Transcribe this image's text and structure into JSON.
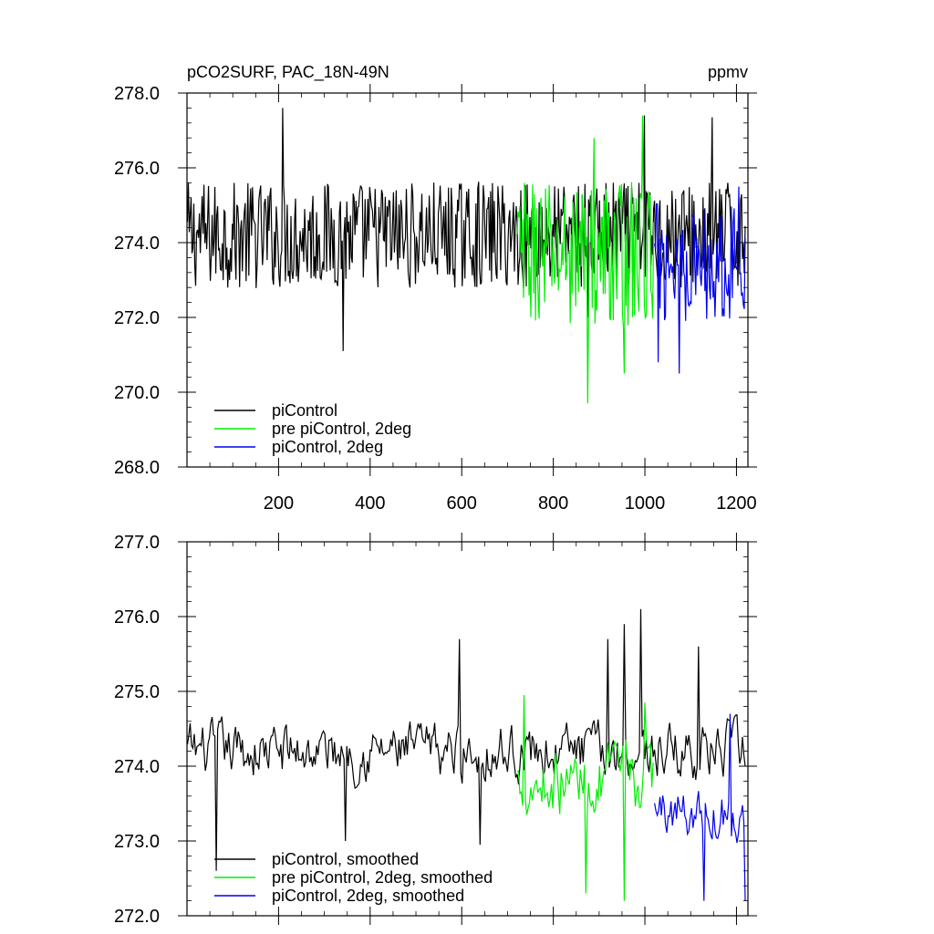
{
  "colors": {
    "piControl": "#000000",
    "pre_piControl_2deg": "#00ee00",
    "piControl_2deg": "#0000ee"
  },
  "chart_data": [
    {
      "type": "line",
      "title_left": "pCO2SURF, PAC_18N-49N",
      "title_right": "ppmv",
      "xlim": [
        0,
        1225
      ],
      "ylim": [
        268.0,
        278.0
      ],
      "x_ticks": [
        200,
        400,
        600,
        800,
        1000,
        1200
      ],
      "x_tick_labels": [
        "200",
        "400",
        "600",
        "800",
        "1000",
        "1200"
      ],
      "y_ticks": [
        268,
        270,
        272,
        274,
        276,
        278
      ],
      "y_tick_labels": [
        "268.0",
        "270.0",
        "272.0",
        "274.0",
        "276.0",
        "278.0"
      ],
      "legend_position": "bottom-left",
      "series": [
        {
          "name": "piControl",
          "color": "#000000",
          "x_range": [
            1,
            1220
          ],
          "mean": 274.2,
          "amplitude": 0.9,
          "spikes": [
            [
              210,
              277.6
            ],
            [
              342,
              271.1
            ],
            [
              1000,
              277.4
            ],
            [
              1148,
              277.35
            ],
            [
              875,
              272.0
            ]
          ]
        },
        {
          "name": "pre piControl, 2deg",
          "color": "#00ee00",
          "x_range": [
            721,
            1020
          ],
          "mean": 273.7,
          "amplitude": 1.2,
          "spikes": [
            [
              875,
              269.7
            ],
            [
              995,
              277.4
            ],
            [
              955,
              270.5
            ],
            [
              890,
              276.8
            ]
          ]
        },
        {
          "name": "piControl, 2deg",
          "color": "#0000ee",
          "x_range": [
            1021,
            1220
          ],
          "mean": 273.5,
          "amplitude": 1.0,
          "spikes": [
            [
              1075,
              270.5
            ],
            [
              1030,
              270.8
            ],
            [
              1205,
              275.5
            ]
          ]
        }
      ]
    },
    {
      "type": "line",
      "title_left": "",
      "title_right": "",
      "xlim": [
        0,
        1225
      ],
      "ylim": [
        272.0,
        277.0
      ],
      "x_ticks": [
        200,
        400,
        600,
        800,
        1000,
        1200
      ],
      "x_tick_labels": [],
      "y_ticks": [
        272,
        273,
        274,
        275,
        276,
        277
      ],
      "y_tick_labels": [
        "272.0",
        "273.0",
        "274.0",
        "275.0",
        "276.0",
        "277.0"
      ],
      "legend_position": "bottom-left",
      "series": [
        {
          "name": "piControl, smoothed",
          "color": "#000000",
          "x_range": [
            1,
            1220
          ],
          "mean": 274.2,
          "amplitude": 0.4,
          "spikes": [
            [
              65,
              272.6
            ],
            [
              990,
              276.1
            ],
            [
              955,
              275.9
            ],
            [
              595,
              275.7
            ],
            [
              920,
              275.7
            ],
            [
              1118,
              275.6
            ],
            [
              345,
              273.0
            ],
            [
              640,
              272.95
            ]
          ]
        },
        {
          "name": "pre piControl, 2deg, smoothed",
          "color": "#00ee00",
          "x_range": [
            721,
            1020
          ],
          "mean": 273.8,
          "amplitude": 0.5,
          "spikes": [
            [
              735,
              274.95
            ],
            [
              870,
              272.3
            ],
            [
              955,
              272.2
            ],
            [
              1000,
              274.85
            ]
          ]
        },
        {
          "name": "piControl, 2deg, smoothed",
          "color": "#0000ee",
          "x_range": [
            1021,
            1220
          ],
          "mean": 273.4,
          "amplitude": 0.4,
          "spikes": [
            [
              1128,
              272.2
            ],
            [
              1218,
              272.2
            ],
            [
              1185,
              274.7
            ]
          ]
        }
      ]
    }
  ]
}
